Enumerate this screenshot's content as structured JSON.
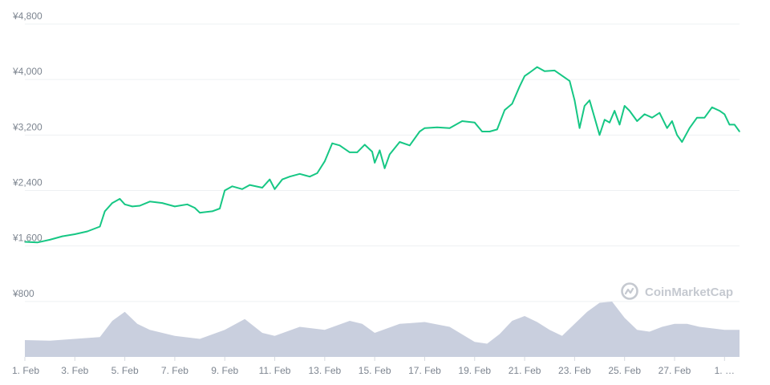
{
  "chart_data": {
    "type": "line",
    "title": "",
    "xlabel": "",
    "ylabel": "",
    "ylim": [
      0,
      4800
    ],
    "y_ticks": [
      "¥800",
      "¥1,600",
      "¥2,400",
      "¥3,200",
      "¥4,000",
      "¥4,800"
    ],
    "y_tick_values": [
      800,
      1600,
      2400,
      3200,
      4000,
      4800
    ],
    "x_ticks": [
      "1. Feb",
      "3. Feb",
      "5. Feb",
      "7. Feb",
      "9. Feb",
      "11. Feb",
      "13. Feb",
      "15. Feb",
      "17. Feb",
      "19. Feb",
      "21. Feb",
      "23. Feb",
      "25. Feb",
      "27. Feb",
      "1. …"
    ],
    "x_tick_days": [
      1,
      3,
      5,
      7,
      9,
      11,
      13,
      15,
      17,
      19,
      21,
      23,
      25,
      27,
      29
    ],
    "xlim_days": [
      1,
      29.6
    ],
    "grid": true,
    "series": [
      {
        "color": "#16c784",
        "days": [
          1.0,
          1.5,
          2.0,
          2.5,
          3.0,
          3.5,
          4.0,
          4.2,
          4.5,
          4.8,
          5.0,
          5.3,
          5.6,
          6.0,
          6.5,
          7.0,
          7.5,
          7.8,
          8.0,
          8.5,
          8.8,
          9.0,
          9.3,
          9.7,
          10.0,
          10.5,
          10.8,
          11.0,
          11.3,
          11.6,
          12.0,
          12.4,
          12.7,
          13.0,
          13.3,
          13.6,
          14.0,
          14.3,
          14.6,
          14.9,
          15.0,
          15.2,
          15.4,
          15.6,
          16.0,
          16.4,
          16.8,
          17.0,
          17.5,
          18.0,
          18.5,
          19.0,
          19.3,
          19.6,
          19.9,
          20.2,
          20.5,
          20.8,
          21.0,
          21.2,
          21.5,
          21.8,
          22.2,
          22.6,
          22.8,
          23.0,
          23.2,
          23.4,
          23.6,
          23.8,
          24.0,
          24.2,
          24.4,
          24.6,
          24.8,
          25.0,
          25.2,
          25.5,
          25.8,
          26.1,
          26.4,
          26.7,
          26.9,
          27.1,
          27.3,
          27.6,
          27.9,
          28.2,
          28.5,
          28.8,
          29.0,
          29.2,
          29.4,
          29.6
        ],
        "values": [
          1660,
          1650,
          1690,
          1740,
          1770,
          1810,
          1880,
          2100,
          2220,
          2280,
          2200,
          2170,
          2180,
          2240,
          2220,
          2170,
          2200,
          2150,
          2080,
          2100,
          2140,
          2400,
          2460,
          2420,
          2480,
          2440,
          2560,
          2420,
          2560,
          2600,
          2640,
          2600,
          2650,
          2820,
          3080,
          3050,
          2950,
          2950,
          3060,
          2960,
          2800,
          2980,
          2720,
          2920,
          3100,
          3050,
          3250,
          3300,
          3310,
          3300,
          3400,
          3380,
          3250,
          3250,
          3280,
          3560,
          3650,
          3900,
          4050,
          4100,
          4180,
          4120,
          4130,
          4030,
          3980,
          3700,
          3300,
          3620,
          3700,
          3450,
          3200,
          3420,
          3380,
          3550,
          3350,
          3620,
          3550,
          3400,
          3500,
          3450,
          3520,
          3300,
          3400,
          3200,
          3100,
          3300,
          3450,
          3450,
          3600,
          3550,
          3500,
          3350,
          3350,
          3250
        ]
      }
    ],
    "volume_bars": {
      "color": "#c9cfde",
      "days": [
        1,
        2,
        3,
        4,
        4.5,
        5,
        5.5,
        6,
        7,
        8,
        9,
        9.8,
        10.5,
        11,
        12,
        13,
        14,
        14.5,
        15,
        16,
        17,
        18,
        19,
        19.5,
        20,
        20.5,
        21,
        21.5,
        22,
        22.5,
        23,
        23.5,
        24,
        24.5,
        25,
        25.5,
        26,
        26.5,
        27,
        27.5,
        28,
        29,
        29.6
      ],
      "relative": [
        0.28,
        0.27,
        0.3,
        0.33,
        0.6,
        0.75,
        0.55,
        0.45,
        0.35,
        0.3,
        0.45,
        0.63,
        0.4,
        0.35,
        0.5,
        0.45,
        0.6,
        0.55,
        0.4,
        0.55,
        0.58,
        0.5,
        0.25,
        0.22,
        0.38,
        0.6,
        0.68,
        0.58,
        0.45,
        0.35,
        0.55,
        0.75,
        0.9,
        0.92,
        0.65,
        0.45,
        0.42,
        0.5,
        0.55,
        0.55,
        0.5,
        0.45,
        0.45
      ]
    }
  },
  "watermark": {
    "text": "CoinMarketCap",
    "color": "#c5c9d0"
  }
}
